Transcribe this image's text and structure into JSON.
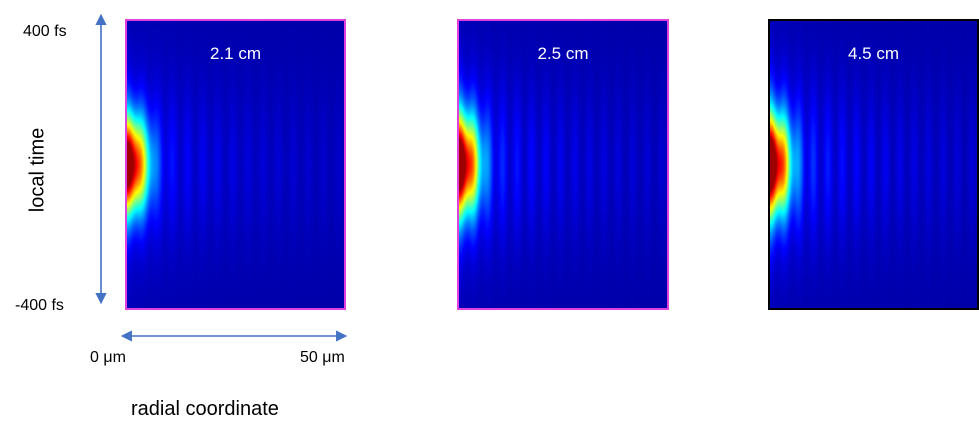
{
  "chart_data": {
    "type": "heatmap",
    "description_colors": {
      "background": "#00008b",
      "colormap": [
        "#00008b",
        "#0000ff",
        "#00ffff",
        "#ffff00",
        "#ff0000",
        "#8b0000"
      ]
    },
    "axes": {
      "y_label": "local time",
      "y_top_tick": "400 fs",
      "y_bottom_tick": "-400 fs",
      "y_range_fs": [
        -400,
        400
      ],
      "x_label": "radial coordinate",
      "x_left_tick": "0 μm",
      "x_right_tick": "50 μm",
      "x_range_um": [
        0,
        50
      ]
    },
    "panels": [
      {
        "label": "2.1 cm",
        "border_color": "#e040e0",
        "peak": 1.0,
        "pulse_width_fs": 125,
        "core_radius_um": 4.5,
        "ring_strength": 0.13
      },
      {
        "label": "2.5 cm",
        "border_color": "#e040e0",
        "peak": 1.0,
        "pulse_width_fs": 130,
        "core_radius_um": 4.5,
        "ring_strength": 0.18
      },
      {
        "label": "4.5 cm",
        "border_color": "#000000",
        "peak": 1.0,
        "pulse_width_fs": 130,
        "core_radius_um": 4.5,
        "ring_strength": 0.2
      }
    ]
  }
}
